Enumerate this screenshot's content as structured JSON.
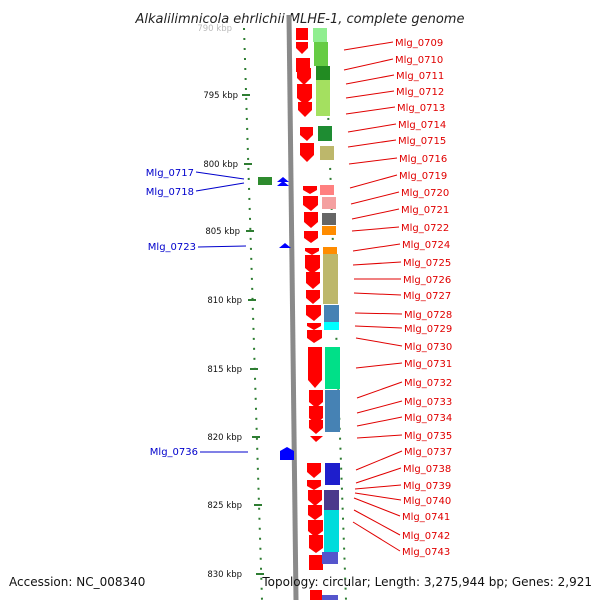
{
  "title": "Alkalilimnicola ehrlichii MLHE-1, complete genome",
  "top_tick_partial": "790 kbp",
  "ticks": [
    "795 kbp",
    "800 kbp",
    "805 kbp",
    "810 kbp",
    "815 kbp",
    "820 kbp",
    "825 kbp",
    "830 kbp"
  ],
  "left_labels": [
    "Mlg_0717",
    "Mlg_0718",
    "Mlg_0723",
    "Mlg_0736"
  ],
  "right_labels": [
    "Mlg_0709",
    "Mlg_0710",
    "Mlg_0711",
    "Mlg_0712",
    "Mlg_0713",
    "Mlg_0714",
    "Mlg_0715",
    "Mlg_0716",
    "Mlg_0719",
    "Mlg_0720",
    "Mlg_0721",
    "Mlg_0722",
    "Mlg_0724",
    "Mlg_0725",
    "Mlg_0726",
    "Mlg_0727",
    "Mlg_0728",
    "Mlg_0729",
    "Mlg_0730",
    "Mlg_0731",
    "Mlg_0732",
    "Mlg_0733",
    "Mlg_0734",
    "Mlg_0735",
    "Mlg_0737",
    "Mlg_0738",
    "Mlg_0739",
    "Mlg_0740",
    "Mlg_0741",
    "Mlg_0742",
    "Mlg_0743"
  ],
  "footer": {
    "accession": "Accession: NC_008340",
    "topology": "Topology: circular; Length: 3,275,944 bp; Genes: 2,921"
  },
  "colors": {
    "forward_strand": "#0000ff",
    "reverse_strand": "#ff0000",
    "right_label": "#e00000",
    "left_label": "#0000cc",
    "tick": "#2e7d32",
    "backbone": "#8a8a8a"
  }
}
